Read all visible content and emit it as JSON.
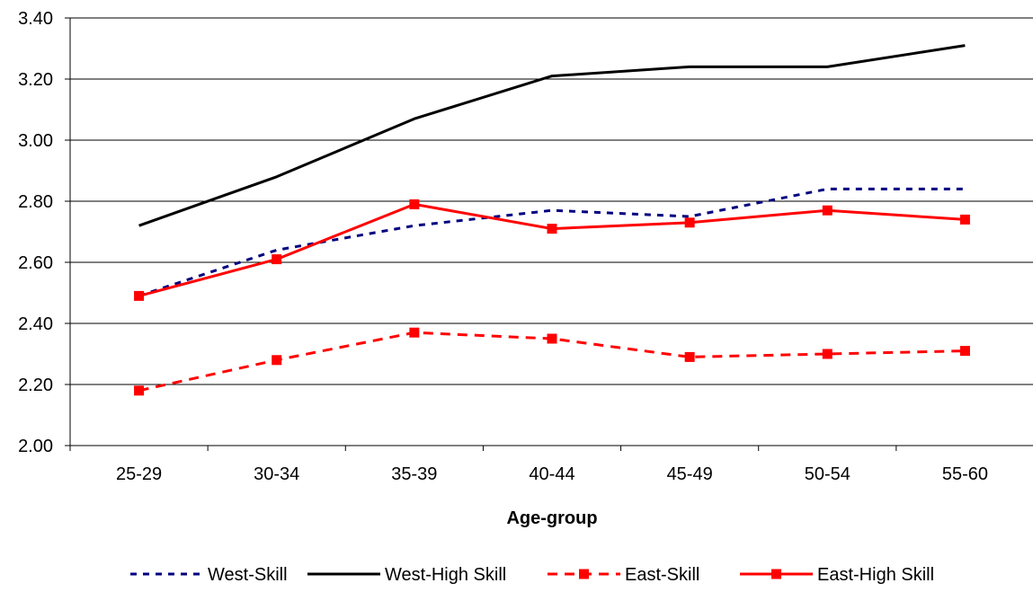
{
  "chart_data": {
    "type": "line",
    "title": "",
    "xlabel": "Age-group",
    "ylabel": "",
    "categories": [
      "25-29",
      "30-34",
      "35-39",
      "40-44",
      "45-49",
      "50-54",
      "55-60"
    ],
    "ylim": [
      2.0,
      3.4
    ],
    "yticks": [
      "2.00",
      "2.20",
      "2.40",
      "2.60",
      "2.80",
      "3.00",
      "3.20",
      "3.40"
    ],
    "grid": true,
    "legend_position": "bottom",
    "series": [
      {
        "name": "West-Skill",
        "values": [
          2.49,
          2.64,
          2.72,
          2.77,
          2.75,
          2.84,
          2.84
        ],
        "color": "#000080",
        "dash": "dotted",
        "marker": "none"
      },
      {
        "name": "West-High Skill",
        "values": [
          2.72,
          2.88,
          3.07,
          3.21,
          3.24,
          3.24,
          3.31
        ],
        "color": "#000000",
        "dash": "solid",
        "marker": "none"
      },
      {
        "name": "East-Skill",
        "values": [
          2.18,
          2.28,
          2.37,
          2.35,
          2.29,
          2.3,
          2.31
        ],
        "color": "#ff0000",
        "dash": "dashed",
        "marker": "square"
      },
      {
        "name": "East-High Skill",
        "values": [
          2.49,
          2.61,
          2.79,
          2.71,
          2.73,
          2.77,
          2.74
        ],
        "color": "#ff0000",
        "dash": "solid",
        "marker": "square"
      }
    ]
  }
}
